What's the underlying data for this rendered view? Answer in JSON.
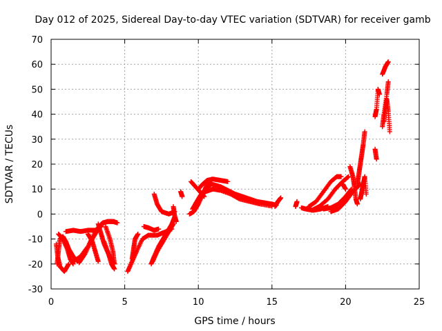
{
  "chart_data": {
    "type": "scatter",
    "title": "Day 012 of 2025, Sidereal Day-to-day VTEC variation (SDTVAR) for receiver gamb",
    "xlabel": "GPS time / hours",
    "ylabel": "SDTVAR / TECUs",
    "xlim": [
      0,
      25
    ],
    "ylim": [
      -30,
      70
    ],
    "xticks": [
      0,
      5,
      10,
      15,
      20,
      25
    ],
    "yticks": [
      -30,
      -20,
      -10,
      0,
      10,
      20,
      30,
      40,
      50,
      60,
      70
    ],
    "grid": true,
    "marker": "+",
    "color": "#ff0000",
    "tracks": [
      [
        [
          0.35,
          -12
        ],
        [
          0.45,
          -17
        ],
        [
          0.6,
          -21
        ],
        [
          0.9,
          -23
        ],
        [
          1.2,
          -20
        ]
      ],
      [
        [
          0.4,
          -20
        ],
        [
          0.5,
          -15
        ],
        [
          0.6,
          -10
        ],
        [
          0.8,
          -9
        ],
        [
          1.0,
          -11
        ],
        [
          1.2,
          -14
        ],
        [
          1.5,
          -17
        ],
        [
          1.8,
          -19
        ]
      ],
      [
        [
          0.5,
          -8
        ],
        [
          0.8,
          -10
        ],
        [
          1.1,
          -14
        ],
        [
          1.3,
          -18
        ],
        [
          1.5,
          -20
        ]
      ],
      [
        [
          1.0,
          -7
        ],
        [
          1.5,
          -6.5
        ],
        [
          2.0,
          -7
        ],
        [
          2.5,
          -6.5
        ],
        [
          3.0,
          -6.5
        ],
        [
          3.4,
          -5
        ]
      ],
      [
        [
          1.5,
          -19
        ],
        [
          2.0,
          -17
        ],
        [
          2.5,
          -13
        ],
        [
          3.0,
          -7
        ],
        [
          3.4,
          -4
        ],
        [
          3.8,
          -3
        ],
        [
          4.2,
          -3
        ],
        [
          4.5,
          -3.5
        ]
      ],
      [
        [
          1.9,
          -19.5
        ],
        [
          2.3,
          -16
        ],
        [
          2.7,
          -11
        ],
        [
          3.1,
          -7
        ],
        [
          3.5,
          -3.5
        ],
        [
          3.9,
          -3
        ],
        [
          4.3,
          -3
        ]
      ],
      [
        [
          2.5,
          -8
        ],
        [
          2.8,
          -11
        ],
        [
          3.0,
          -15
        ],
        [
          3.2,
          -19
        ]
      ],
      [
        [
          3.2,
          -4
        ],
        [
          3.4,
          -8
        ],
        [
          3.6,
          -12
        ],
        [
          3.9,
          -16
        ],
        [
          4.3,
          -20
        ]
      ],
      [
        [
          3.6,
          -11
        ],
        [
          3.9,
          -16
        ],
        [
          4.1,
          -20
        ],
        [
          4.3,
          -22
        ]
      ],
      [
        [
          3.7,
          -5
        ],
        [
          4.0,
          -10
        ],
        [
          4.2,
          -15
        ],
        [
          4.3,
          -20
        ]
      ],
      [
        [
          5.2,
          -23
        ],
        [
          5.5,
          -19
        ],
        [
          5.8,
          -15
        ],
        [
          6.2,
          -10
        ],
        [
          6.6,
          -8.5
        ],
        [
          7.2,
          -8.5
        ],
        [
          7.6,
          -7.5
        ],
        [
          8.2,
          -6
        ]
      ],
      [
        [
          5.5,
          -18
        ],
        [
          5.6,
          -14
        ],
        [
          5.7,
          -10
        ],
        [
          5.9,
          -8
        ]
      ],
      [
        [
          6.3,
          -5
        ],
        [
          6.6,
          -5.5
        ],
        [
          7.0,
          -6.5
        ],
        [
          7.3,
          -6
        ]
      ],
      [
        [
          6.8,
          -20
        ],
        [
          7.0,
          -17
        ],
        [
          7.3,
          -13
        ],
        [
          7.6,
          -10
        ],
        [
          7.9,
          -7
        ],
        [
          8.2,
          -4
        ],
        [
          8.4,
          -1
        ]
      ],
      [
        [
          6.9,
          -19
        ],
        [
          7.2,
          -15
        ],
        [
          7.6,
          -11
        ],
        [
          8.0,
          -7
        ],
        [
          8.3,
          -4
        ]
      ],
      [
        [
          7.0,
          8
        ],
        [
          7.2,
          4
        ],
        [
          7.5,
          1
        ],
        [
          8.0,
          0
        ],
        [
          8.4,
          1
        ]
      ],
      [
        [
          8.3,
          3
        ],
        [
          8.4,
          -1
        ],
        [
          8.5,
          -3
        ]
      ],
      [
        [
          8.8,
          9
        ],
        [
          8.9,
          7
        ]
      ],
      [
        [
          9.4,
          0
        ],
        [
          9.7,
          1
        ],
        [
          10.0,
          4
        ],
        [
          10.3,
          8
        ],
        [
          10.6,
          12
        ],
        [
          10.9,
          14
        ]
      ],
      [
        [
          9.6,
          2
        ],
        [
          9.9,
          5
        ],
        [
          10.2,
          8
        ],
        [
          10.5,
          10
        ],
        [
          10.9,
          12
        ],
        [
          11.5,
          11
        ],
        [
          12.0,
          9.5
        ],
        [
          12.5,
          8
        ],
        [
          13.0,
          7
        ],
        [
          13.5,
          6
        ],
        [
          14.0,
          5
        ],
        [
          14.5,
          4.5
        ],
        [
          15.0,
          4
        ],
        [
          15.3,
          3.5
        ]
      ],
      [
        [
          9.8,
          4
        ],
        [
          10.1,
          7
        ],
        [
          10.5,
          9
        ],
        [
          11.0,
          10
        ],
        [
          11.5,
          9.5
        ],
        [
          12.2,
          8
        ],
        [
          12.8,
          6
        ],
        [
          13.5,
          5
        ],
        [
          14.2,
          4
        ],
        [
          15.0,
          3.2
        ]
      ],
      [
        [
          9.5,
          13
        ],
        [
          9.8,
          11
        ],
        [
          10.1,
          9
        ],
        [
          10.4,
          7
        ]
      ],
      [
        [
          10.0,
          10
        ],
        [
          10.3,
          12
        ],
        [
          10.6,
          13.5
        ],
        [
          11.0,
          14
        ],
        [
          11.5,
          13.5
        ],
        [
          12.0,
          13
        ]
      ],
      [
        [
          15.2,
          3
        ],
        [
          15.4,
          5
        ],
        [
          15.6,
          6.5
        ]
      ],
      [
        [
          16.6,
          3
        ],
        [
          16.7,
          5
        ]
      ],
      [
        [
          17.0,
          2.5
        ],
        [
          17.3,
          2
        ],
        [
          17.8,
          1.5
        ],
        [
          18.3,
          2
        ],
        [
          18.8,
          3
        ]
      ],
      [
        [
          17.5,
          3
        ],
        [
          18.0,
          5
        ],
        [
          18.5,
          9
        ],
        [
          19.0,
          13
        ],
        [
          19.4,
          15
        ],
        [
          19.7,
          15
        ]
      ],
      [
        [
          17.7,
          1.5
        ],
        [
          18.2,
          3
        ],
        [
          18.8,
          6
        ],
        [
          19.3,
          10
        ],
        [
          19.8,
          13
        ],
        [
          20.2,
          15
        ]
      ],
      [
        [
          18.5,
          2
        ],
        [
          19.0,
          2.5
        ],
        [
          19.5,
          4
        ],
        [
          20.0,
          7
        ],
        [
          20.4,
          10
        ]
      ],
      [
        [
          19.0,
          1
        ],
        [
          19.5,
          2
        ],
        [
          20.0,
          5
        ],
        [
          20.5,
          9
        ],
        [
          21.0,
          12
        ]
      ],
      [
        [
          19.8,
          12
        ],
        [
          20.0,
          10
        ]
      ],
      [
        [
          20.3,
          19
        ],
        [
          20.5,
          15
        ],
        [
          20.6,
          11
        ],
        [
          20.7,
          6
        ],
        [
          20.8,
          4
        ]
      ],
      [
        [
          20.8,
          12
        ],
        [
          20.9,
          16
        ],
        [
          21.0,
          20
        ],
        [
          21.1,
          24
        ],
        [
          21.2,
          28
        ],
        [
          21.3,
          33
        ]
      ],
      [
        [
          21.0,
          6
        ],
        [
          21.1,
          9
        ],
        [
          21.2,
          12
        ],
        [
          21.3,
          15
        ],
        [
          21.4,
          8
        ]
      ],
      [
        [
          22.0,
          26
        ],
        [
          22.1,
          22
        ]
      ],
      [
        [
          22.0,
          39
        ],
        [
          22.1,
          42
        ],
        [
          22.2,
          50
        ],
        [
          22.3,
          48
        ]
      ],
      [
        [
          22.5,
          56
        ],
        [
          22.7,
          59
        ],
        [
          22.9,
          61
        ]
      ],
      [
        [
          22.5,
          35
        ],
        [
          22.6,
          40
        ],
        [
          22.8,
          48
        ],
        [
          22.9,
          53
        ]
      ],
      [
        [
          22.6,
          37
        ],
        [
          22.7,
          42
        ],
        [
          22.8,
          46
        ],
        [
          22.9,
          41
        ],
        [
          23.0,
          33
        ]
      ]
    ]
  }
}
